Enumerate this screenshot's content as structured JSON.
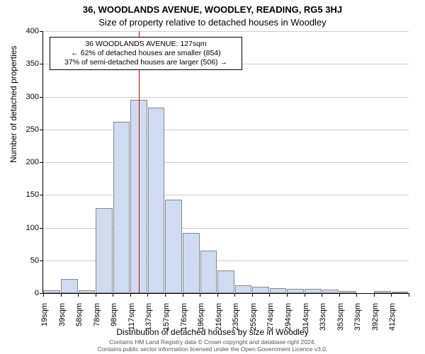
{
  "title_main": "36, WOODLANDS AVENUE, WOODLEY, READING, RG5 3HJ",
  "title_sub": "Size of property relative to detached houses in Woodley",
  "ylabel": "Number of detached properties",
  "xlabel": "Distribution of detached houses by size in Woodley",
  "chart": {
    "type": "histogram",
    "ylim_max": 400,
    "yticks": [
      0,
      50,
      100,
      150,
      200,
      250,
      300,
      350,
      400
    ],
    "grid_color": "#cccccc",
    "bar_fill": "#cfdcf0",
    "bar_border": "#888888",
    "marker_color": "#cc0000",
    "marker_x_value": 127,
    "x_start": 19,
    "bar_width_sqm": 19.6,
    "categories": [
      "19sqm",
      "39sqm",
      "58sqm",
      "78sqm",
      "98sqm",
      "117sqm",
      "137sqm",
      "157sqm",
      "176sqm",
      "196sqm",
      "216sqm",
      "235sqm",
      "255sqm",
      "274sqm",
      "294sqm",
      "314sqm",
      "333sqm",
      "353sqm",
      "373sqm",
      "392sqm",
      "412sqm"
    ],
    "values": [
      4,
      22,
      4,
      130,
      262,
      295,
      283,
      143,
      92,
      65,
      35,
      12,
      10,
      8,
      7,
      7,
      5,
      3,
      0,
      3,
      2
    ]
  },
  "annotation": {
    "line1": "36 WOODLANDS AVENUE: 127sqm",
    "line2": "← 62% of detached houses are smaller (854)",
    "line3": "37% of semi-detached houses are larger (506) →"
  },
  "footer_line1": "Contains HM Land Registry data © Crown copyright and database right 2024.",
  "footer_line2": "Contains public sector information licensed under the Open Government Licence v3.0."
}
